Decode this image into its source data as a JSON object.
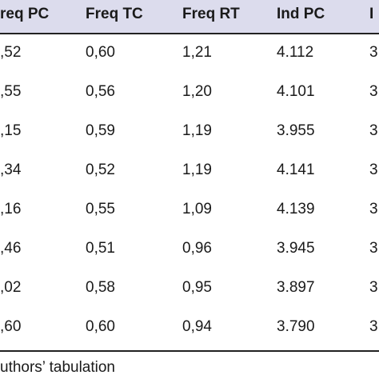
{
  "table": {
    "header": [
      "req PC",
      "Freq TC",
      "Freq RT",
      "Ind PC",
      "I"
    ],
    "rows": [
      [
        ",52",
        "0,60",
        "1,21",
        "4.112",
        "3"
      ],
      [
        ",55",
        "0,56",
        "1,20",
        "4.101",
        "3"
      ],
      [
        ",15",
        "0,59",
        "1,19",
        "3.955",
        "3"
      ],
      [
        ",34",
        "0,52",
        "1,19",
        "4.141",
        "3"
      ],
      [
        ",16",
        "0,55",
        "1,09",
        "4.139",
        "3"
      ],
      [
        ",46",
        "0,51",
        "0,96",
        "3.945",
        "3"
      ],
      [
        ",02",
        "0,58",
        "0,95",
        "3.897",
        "3"
      ],
      [
        ",60",
        "0,60",
        "0,94",
        "3.790",
        "3"
      ]
    ]
  },
  "footer": "uthors’ tabulation"
}
